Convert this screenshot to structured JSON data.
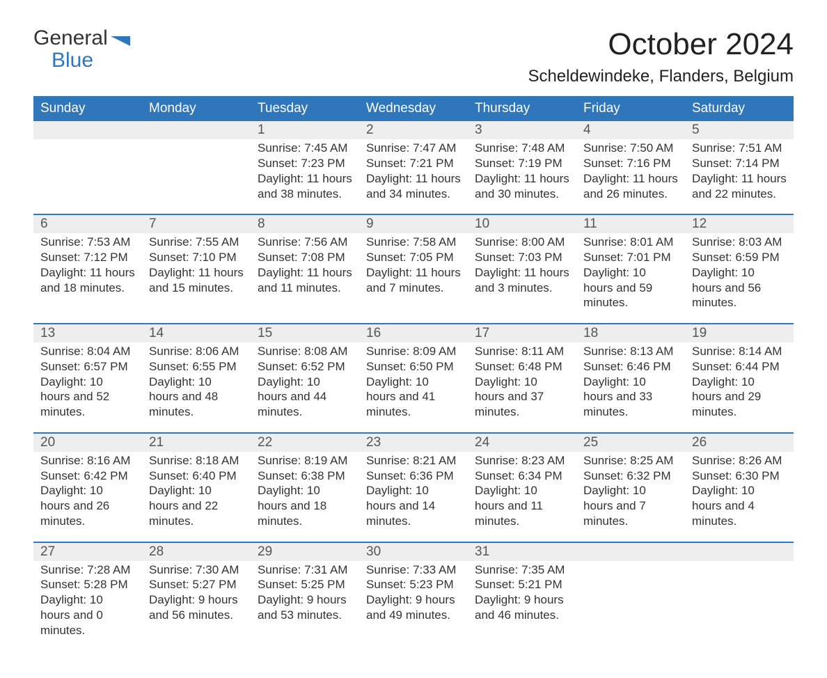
{
  "brand": {
    "general": "General",
    "blue": "Blue",
    "flag_color": "#2f76bb"
  },
  "title": "October 2024",
  "location": "Scheldewindeke, Flanders, Belgium",
  "colors": {
    "header_bg": "#2f76bb",
    "header_text": "#ffffff",
    "daynum_bg": "#eeeeee",
    "divider": "#2f76bb",
    "body_text": "#333333",
    "page_bg": "#ffffff"
  },
  "days_of_week": [
    "Sunday",
    "Monday",
    "Tuesday",
    "Wednesday",
    "Thursday",
    "Friday",
    "Saturday"
  ],
  "weeks": [
    [
      {
        "n": "",
        "r": "",
        "s": "",
        "d": ""
      },
      {
        "n": "",
        "r": "",
        "s": "",
        "d": ""
      },
      {
        "n": "1",
        "r": "7:45 AM",
        "s": "7:23 PM",
        "d": "11 hours and 38 minutes."
      },
      {
        "n": "2",
        "r": "7:47 AM",
        "s": "7:21 PM",
        "d": "11 hours and 34 minutes."
      },
      {
        "n": "3",
        "r": "7:48 AM",
        "s": "7:19 PM",
        "d": "11 hours and 30 minutes."
      },
      {
        "n": "4",
        "r": "7:50 AM",
        "s": "7:16 PM",
        "d": "11 hours and 26 minutes."
      },
      {
        "n": "5",
        "r": "7:51 AM",
        "s": "7:14 PM",
        "d": "11 hours and 22 minutes."
      }
    ],
    [
      {
        "n": "6",
        "r": "7:53 AM",
        "s": "7:12 PM",
        "d": "11 hours and 18 minutes."
      },
      {
        "n": "7",
        "r": "7:55 AM",
        "s": "7:10 PM",
        "d": "11 hours and 15 minutes."
      },
      {
        "n": "8",
        "r": "7:56 AM",
        "s": "7:08 PM",
        "d": "11 hours and 11 minutes."
      },
      {
        "n": "9",
        "r": "7:58 AM",
        "s": "7:05 PM",
        "d": "11 hours and 7 minutes."
      },
      {
        "n": "10",
        "r": "8:00 AM",
        "s": "7:03 PM",
        "d": "11 hours and 3 minutes."
      },
      {
        "n": "11",
        "r": "8:01 AM",
        "s": "7:01 PM",
        "d": "10 hours and 59 minutes."
      },
      {
        "n": "12",
        "r": "8:03 AM",
        "s": "6:59 PM",
        "d": "10 hours and 56 minutes."
      }
    ],
    [
      {
        "n": "13",
        "r": "8:04 AM",
        "s": "6:57 PM",
        "d": "10 hours and 52 minutes."
      },
      {
        "n": "14",
        "r": "8:06 AM",
        "s": "6:55 PM",
        "d": "10 hours and 48 minutes."
      },
      {
        "n": "15",
        "r": "8:08 AM",
        "s": "6:52 PM",
        "d": "10 hours and 44 minutes."
      },
      {
        "n": "16",
        "r": "8:09 AM",
        "s": "6:50 PM",
        "d": "10 hours and 41 minutes."
      },
      {
        "n": "17",
        "r": "8:11 AM",
        "s": "6:48 PM",
        "d": "10 hours and 37 minutes."
      },
      {
        "n": "18",
        "r": "8:13 AM",
        "s": "6:46 PM",
        "d": "10 hours and 33 minutes."
      },
      {
        "n": "19",
        "r": "8:14 AM",
        "s": "6:44 PM",
        "d": "10 hours and 29 minutes."
      }
    ],
    [
      {
        "n": "20",
        "r": "8:16 AM",
        "s": "6:42 PM",
        "d": "10 hours and 26 minutes."
      },
      {
        "n": "21",
        "r": "8:18 AM",
        "s": "6:40 PM",
        "d": "10 hours and 22 minutes."
      },
      {
        "n": "22",
        "r": "8:19 AM",
        "s": "6:38 PM",
        "d": "10 hours and 18 minutes."
      },
      {
        "n": "23",
        "r": "8:21 AM",
        "s": "6:36 PM",
        "d": "10 hours and 14 minutes."
      },
      {
        "n": "24",
        "r": "8:23 AM",
        "s": "6:34 PM",
        "d": "10 hours and 11 minutes."
      },
      {
        "n": "25",
        "r": "8:25 AM",
        "s": "6:32 PM",
        "d": "10 hours and 7 minutes."
      },
      {
        "n": "26",
        "r": "8:26 AM",
        "s": "6:30 PM",
        "d": "10 hours and 4 minutes."
      }
    ],
    [
      {
        "n": "27",
        "r": "7:28 AM",
        "s": "5:28 PM",
        "d": "10 hours and 0 minutes."
      },
      {
        "n": "28",
        "r": "7:30 AM",
        "s": "5:27 PM",
        "d": "9 hours and 56 minutes."
      },
      {
        "n": "29",
        "r": "7:31 AM",
        "s": "5:25 PM",
        "d": "9 hours and 53 minutes."
      },
      {
        "n": "30",
        "r": "7:33 AM",
        "s": "5:23 PM",
        "d": "9 hours and 49 minutes."
      },
      {
        "n": "31",
        "r": "7:35 AM",
        "s": "5:21 PM",
        "d": "9 hours and 46 minutes."
      },
      {
        "n": "",
        "r": "",
        "s": "",
        "d": ""
      },
      {
        "n": "",
        "r": "",
        "s": "",
        "d": ""
      }
    ]
  ],
  "labels": {
    "sunrise": "Sunrise: ",
    "sunset": "Sunset: ",
    "daylight": "Daylight: "
  }
}
